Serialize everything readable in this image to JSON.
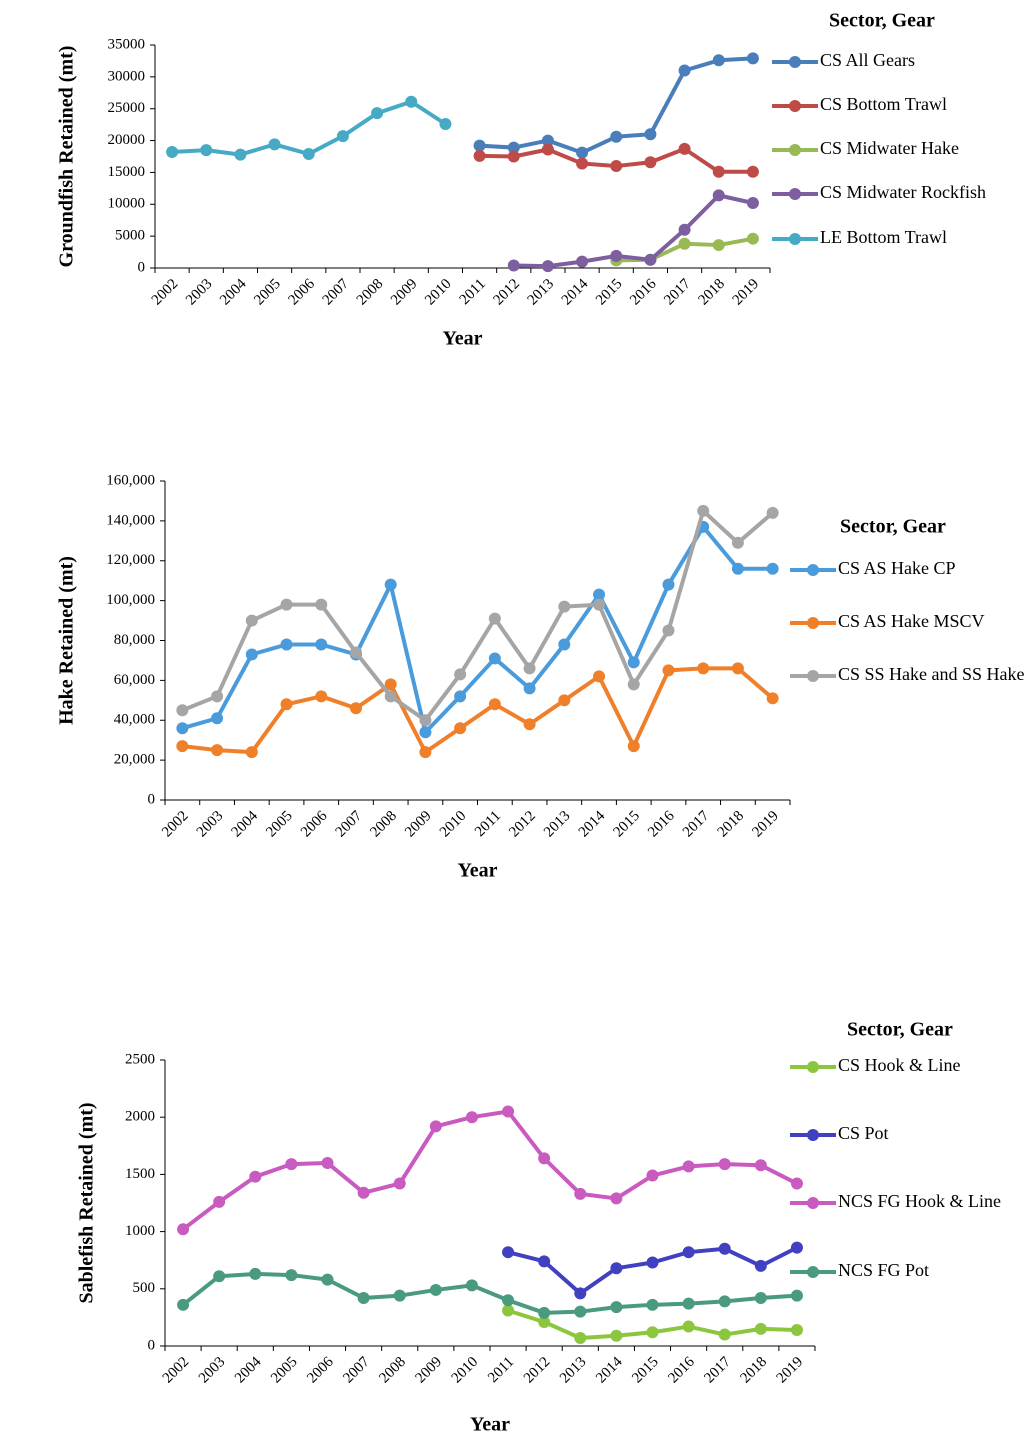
{
  "chart_data": [
    {
      "type": "line",
      "xlabel": "Year",
      "ylabel": "Groundfish Retained (mt)",
      "legend_title": "Sector, Gear",
      "categories": [
        "2002",
        "2003",
        "2004",
        "2005",
        "2006",
        "2007",
        "2008",
        "2009",
        "2010",
        "2011",
        "2012",
        "2013",
        "2014",
        "2015",
        "2016",
        "2017",
        "2018",
        "2019"
      ],
      "ylim": [
        0,
        35000
      ],
      "yticks": [
        0,
        5000,
        10000,
        15000,
        20000,
        25000,
        30000,
        35000
      ],
      "series": [
        {
          "name": "CS All Gears",
          "color": "#4a7ebb",
          "values": [
            null,
            null,
            null,
            null,
            null,
            null,
            null,
            null,
            null,
            19200,
            18900,
            20000,
            18100,
            20600,
            21000,
            31000,
            32600,
            32900
          ]
        },
        {
          "name": "CS Bottom Trawl",
          "color": "#be4b48",
          "values": [
            null,
            null,
            null,
            null,
            null,
            null,
            null,
            null,
            null,
            17600,
            17500,
            18600,
            16400,
            16000,
            16600,
            18700,
            15100,
            15100
          ]
        },
        {
          "name": "CS Midwater Hake",
          "color": "#98b954",
          "values": [
            null,
            null,
            null,
            null,
            null,
            null,
            null,
            null,
            null,
            null,
            null,
            null,
            null,
            1200,
            1300,
            3800,
            3600,
            4600
          ]
        },
        {
          "name": "CS Midwater Rockfish",
          "color": "#7d5fa0",
          "values": [
            null,
            null,
            null,
            null,
            null,
            null,
            null,
            null,
            null,
            null,
            400,
            300,
            1000,
            1900,
            1300,
            6000,
            11400,
            10200
          ]
        },
        {
          "name": "LE Bottom Trawl",
          "color": "#46aac5",
          "values": [
            18200,
            18500,
            17800,
            19400,
            17900,
            20700,
            24300,
            26100,
            22600,
            null,
            null,
            null,
            null,
            null,
            null,
            null,
            null,
            null
          ]
        }
      ]
    },
    {
      "type": "line",
      "xlabel": "Year",
      "ylabel": "Hake Retained (mt)",
      "legend_title": "Sector, Gear",
      "categories": [
        "2002",
        "2003",
        "2004",
        "2005",
        "2006",
        "2007",
        "2008",
        "2009",
        "2010",
        "2011",
        "2012",
        "2013",
        "2014",
        "2015",
        "2016",
        "2017",
        "2018",
        "2019"
      ],
      "ylim": [
        0,
        160000
      ],
      "yticks": [
        0,
        {
          "value": 20000,
          "label": "20,000"
        },
        {
          "value": 40000,
          "label": "40,000"
        },
        {
          "value": 60000,
          "label": "60,000"
        },
        {
          "value": 80000,
          "label": "80,000"
        },
        {
          "value": 100000,
          "label": "100,000"
        },
        {
          "value": 120000,
          "label": "120,000"
        },
        {
          "value": 140000,
          "label": "140,000"
        },
        {
          "value": 160000,
          "label": "160,000"
        }
      ],
      "series": [
        {
          "name": "CS AS Hake CP",
          "color": "#4a9bdc",
          "values": [
            36000,
            41000,
            73000,
            78000,
            78000,
            73000,
            108000,
            34000,
            52000,
            71000,
            56000,
            78000,
            103000,
            69000,
            108000,
            137000,
            116000,
            116000
          ]
        },
        {
          "name": "CS AS Hake MSCV",
          "color": "#f07f2a",
          "values": [
            27000,
            25000,
            24000,
            48000,
            52000,
            46000,
            58000,
            24000,
            36000,
            48000,
            38000,
            50000,
            62000,
            27000,
            65000,
            66000,
            66000,
            51000
          ]
        },
        {
          "name": "CS SS Hake and SS Hake",
          "color": "#a5a5a5",
          "values": [
            45000,
            52000,
            90000,
            98000,
            98000,
            74000,
            52000,
            40000,
            63000,
            91000,
            66000,
            97000,
            98000,
            58000,
            85000,
            145000,
            129000,
            144000
          ]
        }
      ]
    },
    {
      "type": "line",
      "xlabel": "Year",
      "ylabel": "Sablefish Retained (mt)",
      "legend_title": "Sector, Gear",
      "categories": [
        "2002",
        "2003",
        "2004",
        "2005",
        "2006",
        "2007",
        "2008",
        "2009",
        "2010",
        "2011",
        "2012",
        "2013",
        "2014",
        "2015",
        "2016",
        "2017",
        "2018",
        "2019"
      ],
      "ylim": [
        0,
        2500
      ],
      "yticks": [
        0,
        500,
        1000,
        1500,
        2000,
        2500
      ],
      "series": [
        {
          "name": "CS Hook & Line",
          "color": "#8cc63f",
          "values": [
            null,
            null,
            null,
            null,
            null,
            null,
            null,
            null,
            null,
            310,
            210,
            70,
            90,
            120,
            170,
            100,
            150,
            140
          ]
        },
        {
          "name": "CS Pot",
          "color": "#4040c0",
          "values": [
            null,
            null,
            null,
            null,
            null,
            null,
            null,
            null,
            null,
            820,
            740,
            460,
            680,
            730,
            820,
            850,
            700,
            860
          ]
        },
        {
          "name": "NCS FG Hook & Line",
          "color": "#c85ac0",
          "values": [
            1020,
            1260,
            1480,
            1590,
            1600,
            1340,
            1420,
            1920,
            2000,
            2050,
            1640,
            1330,
            1290,
            1490,
            1570,
            1590,
            1580,
            1420
          ]
        },
        {
          "name": "NCS FG Pot",
          "color": "#4a9a80",
          "values": [
            360,
            610,
            630,
            620,
            580,
            420,
            440,
            490,
            530,
            400,
            290,
            300,
            340,
            360,
            370,
            390,
            420,
            440
          ]
        }
      ]
    }
  ]
}
